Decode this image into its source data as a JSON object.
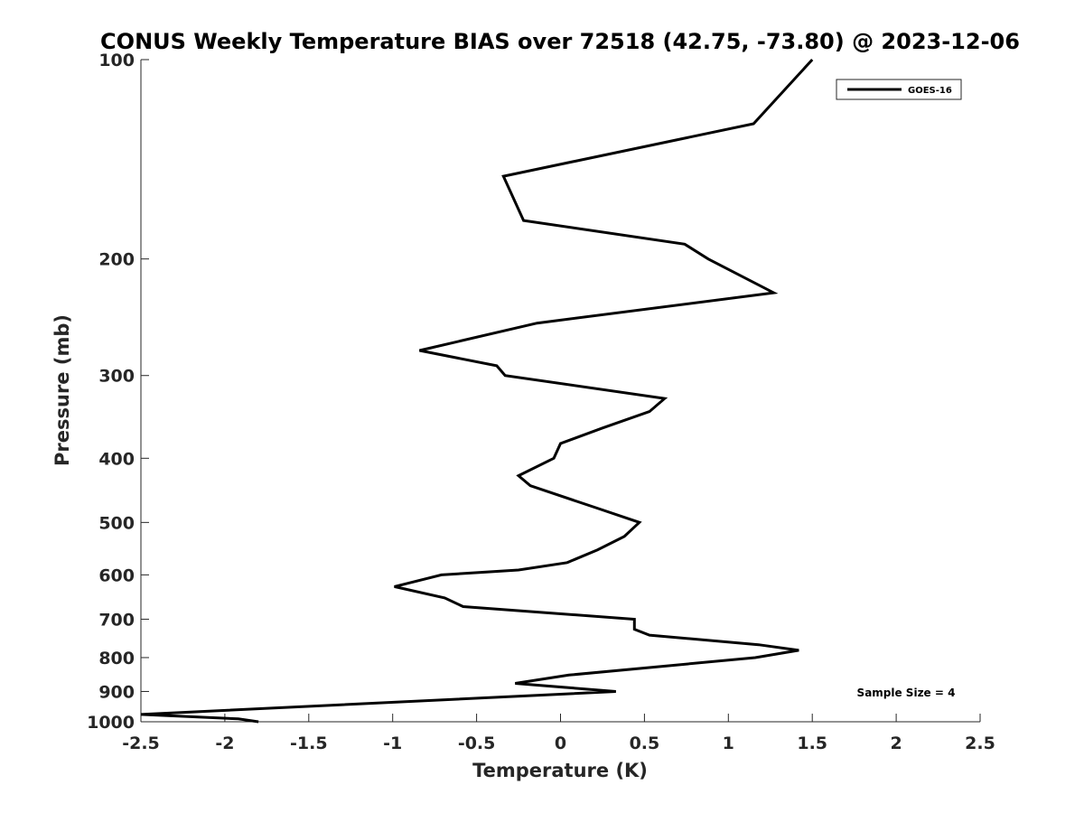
{
  "chart_data": {
    "type": "line",
    "title": "CONUS Weekly Temperature BIAS over 72518 (42.75, -73.80) @ 2023-12-06",
    "xlabel": "Temperature (K)",
    "ylabel": "Pressure (mb)",
    "xlim": [
      -2.5,
      2.5
    ],
    "ylim": [
      1000,
      100
    ],
    "yscale": "log",
    "y_reversed": true,
    "grid": false,
    "legend_position": "top-right",
    "x_ticks": [
      "-2.5",
      "-2",
      "-1.5",
      "-1",
      "-0.5",
      "0",
      "0.5",
      "1",
      "1.5",
      "2",
      "2.5"
    ],
    "y_ticks": [
      "100",
      "200",
      "300",
      "400",
      "500",
      "600",
      "700",
      "800",
      "900",
      "1000"
    ],
    "series": [
      {
        "name": "GOES-16",
        "color": "#000000",
        "points": [
          {
            "x": 1.5,
            "p": 100
          },
          {
            "x": 1.15,
            "p": 125
          },
          {
            "x": -0.34,
            "p": 150
          },
          {
            "x": -0.22,
            "p": 175
          },
          {
            "x": 0.74,
            "p": 190
          },
          {
            "x": 0.88,
            "p": 200
          },
          {
            "x": 1.27,
            "p": 225
          },
          {
            "x": -0.14,
            "p": 250
          },
          {
            "x": -0.84,
            "p": 275
          },
          {
            "x": -0.38,
            "p": 290
          },
          {
            "x": -0.33,
            "p": 300
          },
          {
            "x": 0.62,
            "p": 325
          },
          {
            "x": 0.53,
            "p": 340
          },
          {
            "x": 0.25,
            "p": 360
          },
          {
            "x": 0.0,
            "p": 380
          },
          {
            "x": -0.04,
            "p": 400
          },
          {
            "x": -0.25,
            "p": 425
          },
          {
            "x": -0.18,
            "p": 440
          },
          {
            "x": 0.21,
            "p": 475
          },
          {
            "x": 0.47,
            "p": 500
          },
          {
            "x": 0.38,
            "p": 525
          },
          {
            "x": 0.22,
            "p": 550
          },
          {
            "x": 0.04,
            "p": 575
          },
          {
            "x": -0.25,
            "p": 590
          },
          {
            "x": -0.71,
            "p": 600
          },
          {
            "x": -0.99,
            "p": 625
          },
          {
            "x": -0.69,
            "p": 650
          },
          {
            "x": -0.58,
            "p": 670
          },
          {
            "x": 0.44,
            "p": 700
          },
          {
            "x": 0.44,
            "p": 725
          },
          {
            "x": 0.53,
            "p": 740
          },
          {
            "x": 1.18,
            "p": 765
          },
          {
            "x": 1.42,
            "p": 780
          },
          {
            "x": 1.16,
            "p": 800
          },
          {
            "x": 0.05,
            "p": 850
          },
          {
            "x": -0.27,
            "p": 875
          },
          {
            "x": 0.33,
            "p": 900
          },
          {
            "x": -2.5,
            "p": 975
          },
          {
            "x": -1.92,
            "p": 990
          },
          {
            "x": -1.8,
            "p": 1000
          }
        ]
      }
    ],
    "annotation": "Sample Size = 4"
  }
}
